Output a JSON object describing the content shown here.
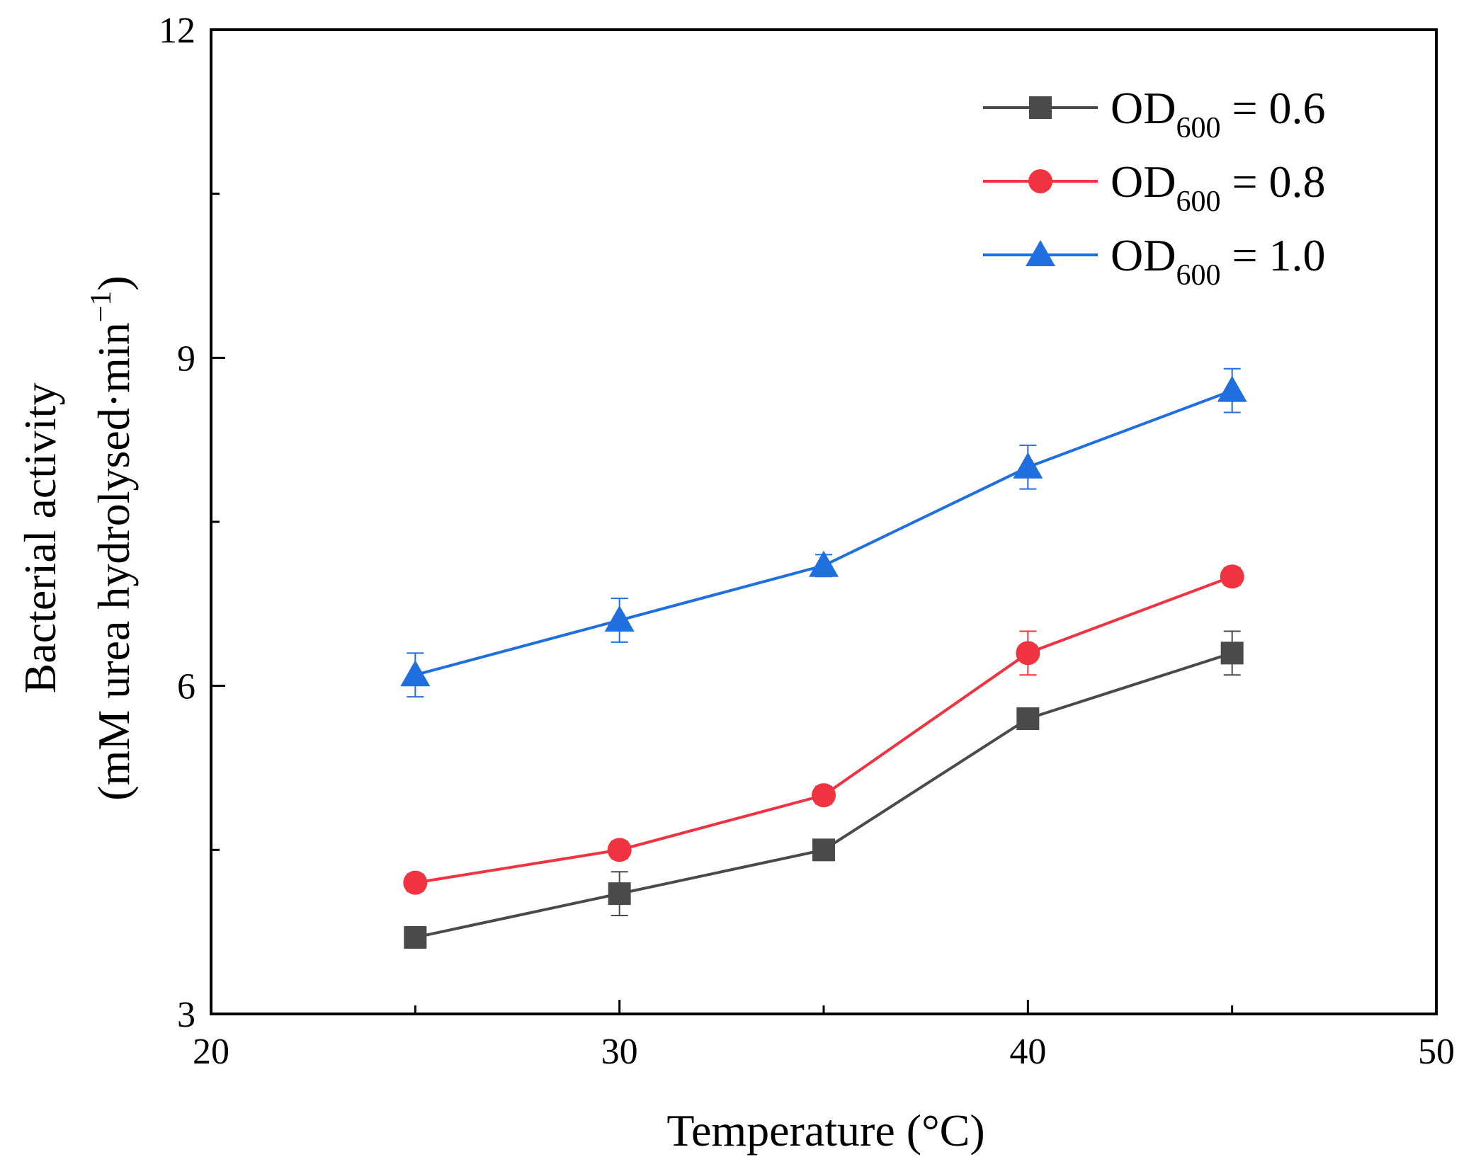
{
  "chart_data": {
    "type": "line",
    "xlabel": "Temperature (°C)",
    "ylabel_line1": "Bacterial activity",
    "ylabel_line2": "(mM urea hydrolysed·min",
    "ylabel_sup": "−1",
    "ylabel_close": ")",
    "xlim": [
      20,
      50
    ],
    "ylim": [
      3,
      12
    ],
    "xticks": [
      20,
      30,
      40,
      50
    ],
    "yticks": [
      3,
      6,
      9,
      12
    ],
    "grid": false,
    "legend_position": "top-right",
    "x": [
      25,
      30,
      35,
      40,
      45
    ],
    "series": [
      {
        "name": "OD600 = 0.6",
        "legend_main": "OD",
        "legend_sub": "600",
        "legend_rest": " = 0.6",
        "marker": "square",
        "color": "#4a4a4a",
        "values": [
          3.7,
          4.1,
          4.5,
          5.7,
          6.3
        ],
        "errors": [
          0.05,
          0.2,
          0.05,
          0.05,
          0.2
        ]
      },
      {
        "name": "OD600 = 0.8",
        "legend_main": "OD",
        "legend_sub": "600",
        "legend_rest": " = 0.8",
        "marker": "circle",
        "color": "#ef3340",
        "values": [
          4.2,
          4.5,
          5.0,
          6.3,
          7.0
        ],
        "errors": [
          0.08,
          0.08,
          0.08,
          0.2,
          0.08
        ]
      },
      {
        "name": "OD600 = 1.0",
        "legend_main": "OD",
        "legend_sub": "600",
        "legend_rest": " = 1.0",
        "marker": "triangle",
        "color": "#1f6fe0",
        "values": [
          6.1,
          6.6,
          7.1,
          8.0,
          8.7
        ],
        "errors": [
          0.2,
          0.2,
          0.1,
          0.2,
          0.2
        ]
      }
    ]
  }
}
